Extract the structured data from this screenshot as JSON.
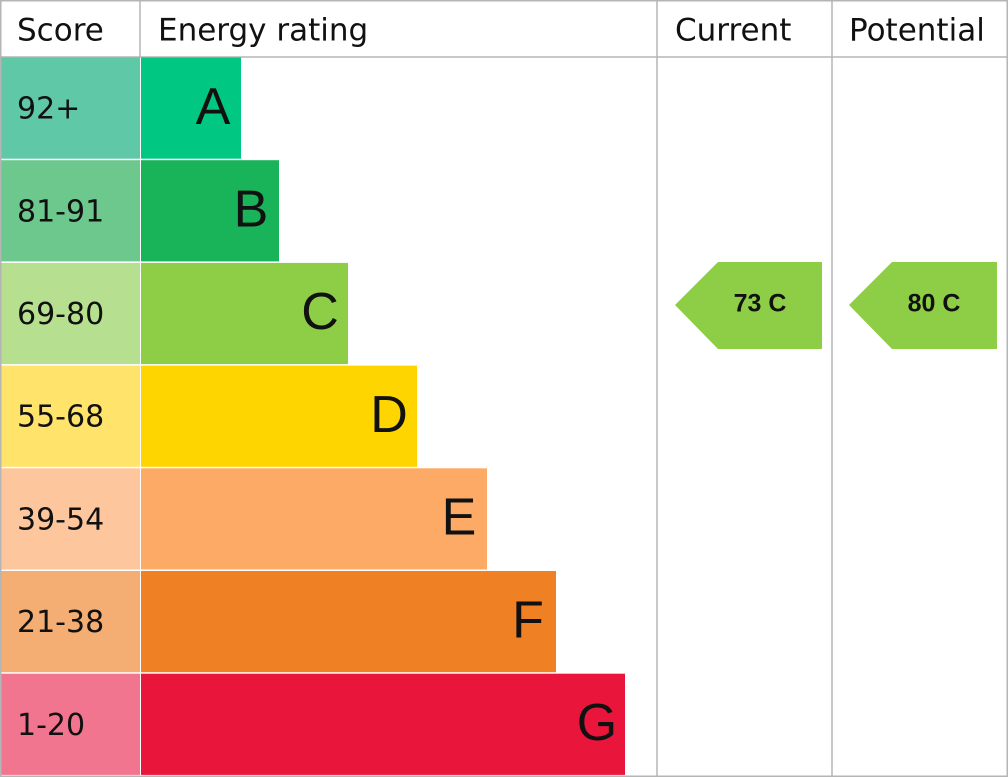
{
  "header": {
    "score": "Score",
    "rating": "Energy rating",
    "current": "Current",
    "potential": "Potential"
  },
  "bands": [
    {
      "score": "92+",
      "letter": "A",
      "color": "#00c781",
      "score_color": "#5fc8a6"
    },
    {
      "score": "81-91",
      "letter": "B",
      "color": "#19b459",
      "score_color": "#6cc88d"
    },
    {
      "score": "69-80",
      "letter": "C",
      "color": "#8dce46",
      "score_color": "#b6e08f"
    },
    {
      "score": "55-68",
      "letter": "D",
      "color": "#ffd500",
      "score_color": "#ffe36b"
    },
    {
      "score": "39-54",
      "letter": "E",
      "color": "#fcaa65",
      "score_color": "#fdc69d"
    },
    {
      "score": "21-38",
      "letter": "F",
      "color": "#ef8023",
      "score_color": "#f4ad73"
    },
    {
      "score": "1-20",
      "letter": "G",
      "color": "#e9153b",
      "score_color": "#f27590"
    }
  ],
  "current": {
    "label": "73 C",
    "color": "#8dce46"
  },
  "potential": {
    "label": "80 C",
    "color": "#8dce46"
  }
}
